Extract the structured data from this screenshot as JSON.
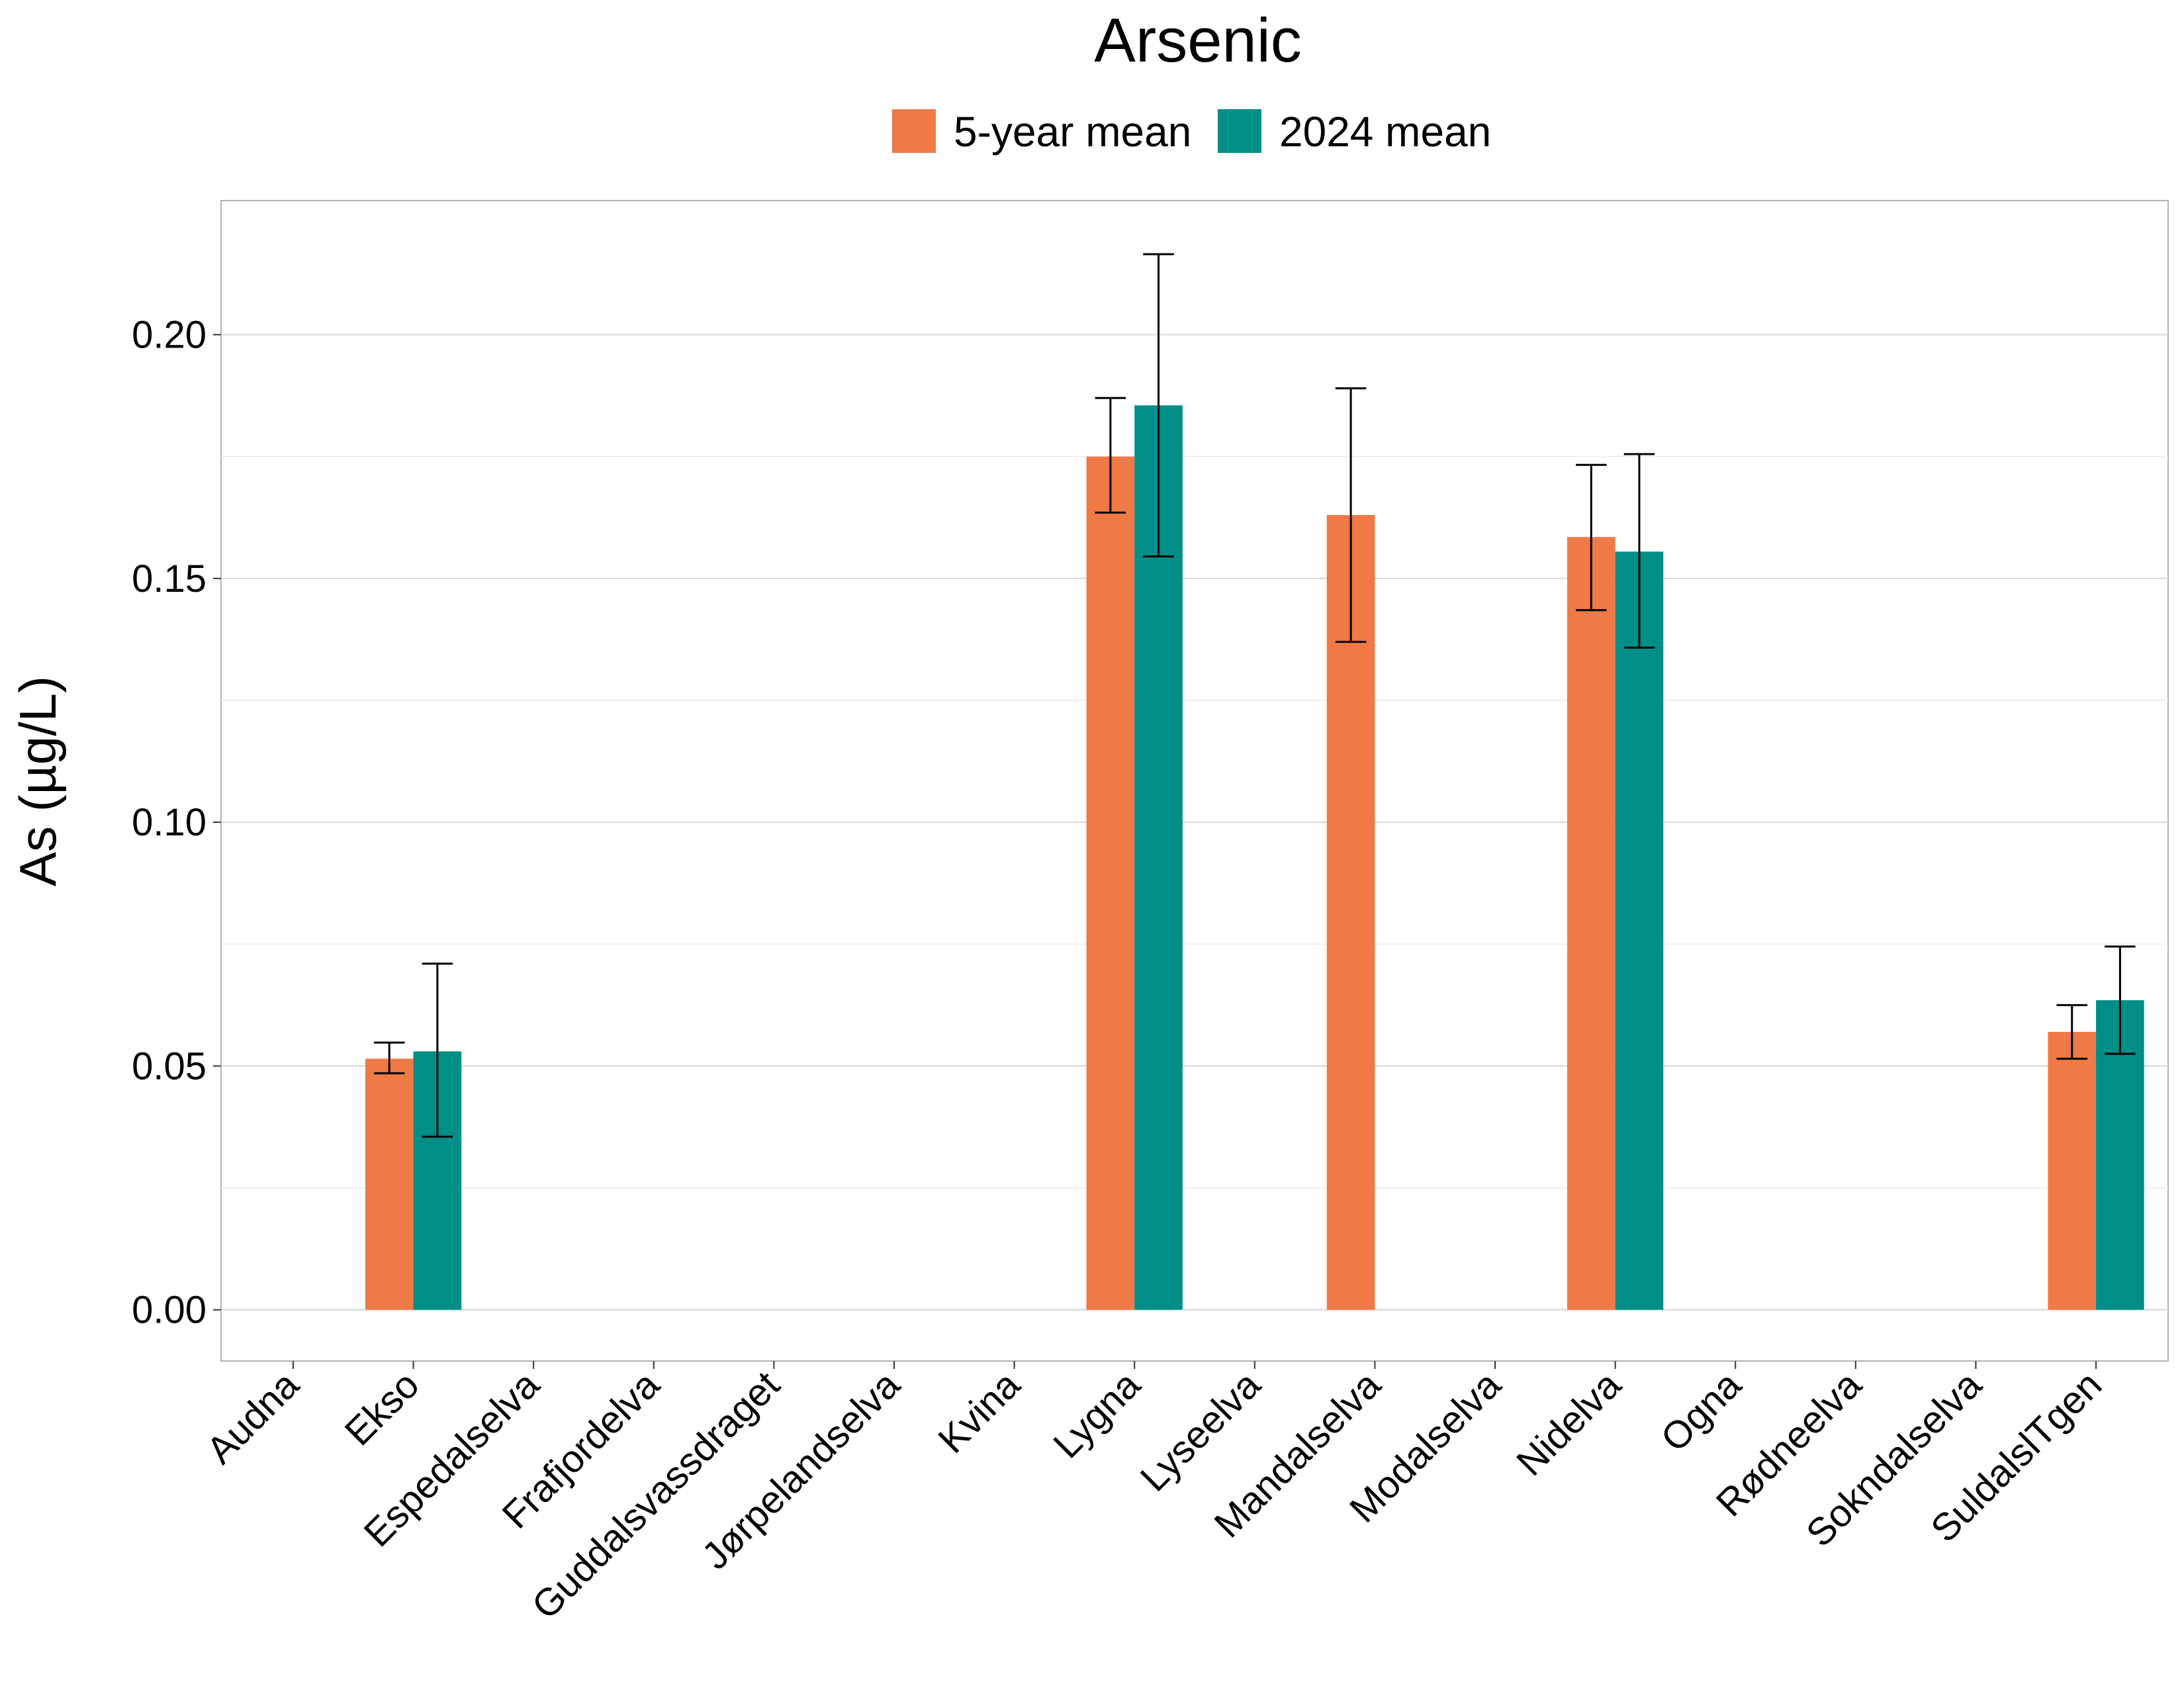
{
  "chart_data": {
    "type": "bar",
    "title": "Arsenic",
    "ylabel": "As (µg/L)",
    "xlabel": "",
    "ylim": [
      -0.0105,
      0.2275
    ],
    "yticks": [
      0.0,
      0.05,
      0.1,
      0.15,
      0.2
    ],
    "ytick_labels": [
      "0.00",
      "0.05",
      "0.10",
      "0.15",
      "0.20"
    ],
    "grid": true,
    "legend_position": "top",
    "categories": [
      "Audna",
      "Ekso",
      "Espedalselva",
      "Frafjordelva",
      "Guddalsvassdraget",
      "Jørpelandselva",
      "Kvina",
      "Lygna",
      "Lyseelva",
      "Mandalselva",
      "Modalselva",
      "Nidelva",
      "Ogna",
      "Rødneelva",
      "Sokndalselva",
      "SuldalslTgen"
    ],
    "series": [
      {
        "name": "5-year mean",
        "color": "#ef7a45",
        "values": [
          null,
          0.0515,
          null,
          null,
          null,
          null,
          null,
          0.175,
          null,
          0.163,
          null,
          0.1585,
          null,
          null,
          null,
          0.057
        ],
        "error_low": [
          null,
          0.0485,
          null,
          null,
          null,
          null,
          null,
          0.1635,
          null,
          0.137,
          null,
          0.1435,
          null,
          null,
          null,
          0.0515
        ],
        "error_high": [
          null,
          0.0548,
          null,
          null,
          null,
          null,
          null,
          0.187,
          null,
          0.189,
          null,
          0.1733,
          null,
          null,
          null,
          0.0625
        ]
      },
      {
        "name": "2024 mean",
        "color": "#008e89",
        "values": [
          null,
          0.053,
          null,
          null,
          null,
          null,
          null,
          0.1855,
          null,
          null,
          null,
          0.1555,
          null,
          null,
          null,
          0.0635
        ],
        "error_low": [
          null,
          0.0355,
          null,
          null,
          null,
          null,
          null,
          0.1545,
          null,
          null,
          null,
          0.1358,
          null,
          null,
          null,
          0.0525
        ],
        "error_high": [
          null,
          0.071,
          null,
          null,
          null,
          null,
          null,
          0.2165,
          null,
          null,
          null,
          0.1755,
          null,
          null,
          null,
          0.0745
        ]
      }
    ]
  }
}
